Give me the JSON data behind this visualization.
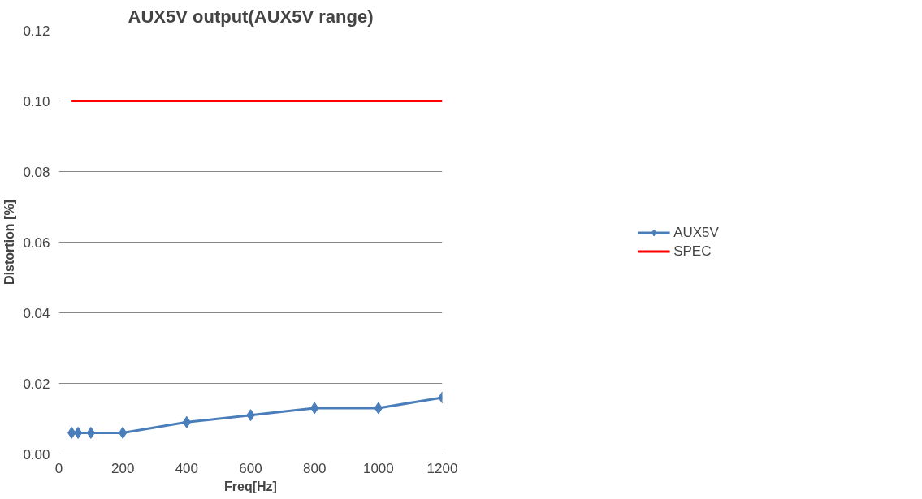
{
  "chart_data": {
    "type": "line",
    "title": "AUX5V output(AUX5V range)",
    "xlabel": "Freq[Hz]",
    "ylabel": "Distortion [%]",
    "xlim": [
      0,
      1200
    ],
    "xticks": [
      0,
      200,
      400,
      600,
      800,
      1000,
      1200
    ],
    "ylim": [
      0,
      0.12
    ],
    "yticks": [
      {
        "value": 0,
        "label": "0.00"
      },
      {
        "value": 0.02,
        "label": "0.02"
      },
      {
        "value": 0.04,
        "label": "0.04"
      },
      {
        "value": 0.06,
        "label": "0.06"
      },
      {
        "value": 0.08,
        "label": "0.08"
      },
      {
        "value": 0.1,
        "label": "0.10"
      },
      {
        "value": 0.12,
        "label": "0.12"
      }
    ],
    "grid": "y",
    "legend": "right",
    "series": [
      {
        "name": "AUX5V",
        "color": "#4a7ebb",
        "marker": "diamond",
        "x": [
          40,
          60,
          100,
          200,
          400,
          600,
          800,
          1000,
          1200
        ],
        "values": [
          0.006,
          0.006,
          0.006,
          0.006,
          0.009,
          0.011,
          0.013,
          0.013,
          0.016
        ]
      },
      {
        "name": "SPEC",
        "color": "#ff0000",
        "marker": "none",
        "x": [
          40,
          1200
        ],
        "values": [
          0.1,
          0.1
        ]
      }
    ]
  }
}
